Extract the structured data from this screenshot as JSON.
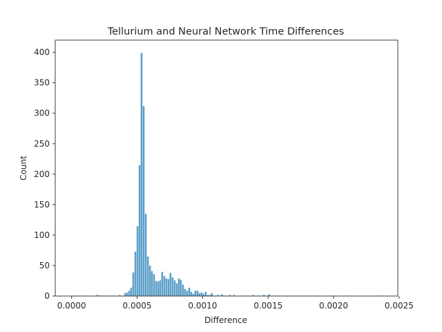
{
  "chart_data": {
    "type": "bar",
    "title": "Tellurium and Neural Network Time Differences",
    "xlabel": "Difference",
    "ylabel": "Count",
    "xlim": [
      -0.000125,
      0.00249
    ],
    "ylim": [
      0,
      420
    ],
    "xticks": [
      0.0,
      0.0005,
      0.001,
      0.0015,
      0.002,
      0.0025
    ],
    "xtick_labels": [
      "0.0000",
      "0.0005",
      "0.0010",
      "0.0015",
      "0.0020",
      "0.0025"
    ],
    "yticks": [
      0,
      50,
      100,
      150,
      200,
      250,
      300,
      350,
      400
    ],
    "ytick_labels": [
      "0",
      "50",
      "100",
      "150",
      "200",
      "250",
      "300",
      "350",
      "400"
    ],
    "grid": false,
    "bar_color": "#5a9ec8",
    "bin_width": 1.58e-05,
    "series": [
      {
        "values": [
          {
            "x": 0.0,
            "y": 1
          },
          {
            "x": 0.0001,
            "y": 1
          },
          {
            "x": 0.00019,
            "y": 2
          },
          {
            "x": 0.00021,
            "y": 1
          },
          {
            "x": 0.00024,
            "y": 1
          },
          {
            "x": 0.00029,
            "y": 1
          },
          {
            "x": 0.00031,
            "y": 1
          },
          {
            "x": 0.00036,
            "y": 2
          },
          {
            "x": 0.0004,
            "y": 5
          },
          {
            "x": 0.000416,
            "y": 6
          },
          {
            "x": 0.000432,
            "y": 9
          },
          {
            "x": 0.000447,
            "y": 14
          },
          {
            "x": 0.000463,
            "y": 39
          },
          {
            "x": 0.000479,
            "y": 73
          },
          {
            "x": 0.000495,
            "y": 115
          },
          {
            "x": 0.000511,
            "y": 215
          },
          {
            "x": 0.000526,
            "y": 399
          },
          {
            "x": 0.000542,
            "y": 312
          },
          {
            "x": 0.000558,
            "y": 135
          },
          {
            "x": 0.000574,
            "y": 65
          },
          {
            "x": 0.00059,
            "y": 50
          },
          {
            "x": 0.000605,
            "y": 41
          },
          {
            "x": 0.000621,
            "y": 36
          },
          {
            "x": 0.000637,
            "y": 25
          },
          {
            "x": 0.000653,
            "y": 24
          },
          {
            "x": 0.000668,
            "y": 26
          },
          {
            "x": 0.000684,
            "y": 40
          },
          {
            "x": 0.0007,
            "y": 33
          },
          {
            "x": 0.000716,
            "y": 29
          },
          {
            "x": 0.000732,
            "y": 28
          },
          {
            "x": 0.000747,
            "y": 38
          },
          {
            "x": 0.000763,
            "y": 31
          },
          {
            "x": 0.000779,
            "y": 26
          },
          {
            "x": 0.000795,
            "y": 21
          },
          {
            "x": 0.000811,
            "y": 29
          },
          {
            "x": 0.000826,
            "y": 27
          },
          {
            "x": 0.000842,
            "y": 19
          },
          {
            "x": 0.000858,
            "y": 12
          },
          {
            "x": 0.000874,
            "y": 9
          },
          {
            "x": 0.00089,
            "y": 14
          },
          {
            "x": 0.000905,
            "y": 7
          },
          {
            "x": 0.000921,
            "y": 4
          },
          {
            "x": 0.000937,
            "y": 9
          },
          {
            "x": 0.000953,
            "y": 9
          },
          {
            "x": 0.000968,
            "y": 5
          },
          {
            "x": 0.000984,
            "y": 6
          },
          {
            "x": 0.001,
            "y": 4
          },
          {
            "x": 0.001016,
            "y": 7
          },
          {
            "x": 0.001032,
            "y": 2
          },
          {
            "x": 0.001047,
            "y": 2
          },
          {
            "x": 0.001063,
            "y": 5
          },
          {
            "x": 0.001079,
            "y": 1
          },
          {
            "x": 0.001095,
            "y": 1
          },
          {
            "x": 0.00111,
            "y": 2
          },
          {
            "x": 0.00114,
            "y": 3
          },
          {
            "x": 0.00117,
            "y": 1
          },
          {
            "x": 0.0012,
            "y": 2
          },
          {
            "x": 0.00123,
            "y": 2
          },
          {
            "x": 0.00128,
            "y": 1
          },
          {
            "x": 0.00131,
            "y": 1
          },
          {
            "x": 0.00134,
            "y": 1
          },
          {
            "x": 0.00138,
            "y": 2
          },
          {
            "x": 0.00142,
            "y": 1
          },
          {
            "x": 0.00146,
            "y": 2
          },
          {
            "x": 0.0015,
            "y": 3
          },
          {
            "x": 0.00154,
            "y": 1
          },
          {
            "x": 0.00158,
            "y": 1
          },
          {
            "x": 0.00163,
            "y": 1
          },
          {
            "x": 0.00168,
            "y": 1
          },
          {
            "x": 0.00172,
            "y": 1
          },
          {
            "x": 0.00181,
            "y": 1
          },
          {
            "x": 0.00188,
            "y": 1
          },
          {
            "x": 0.00196,
            "y": 1
          },
          {
            "x": 0.0021,
            "y": 1
          },
          {
            "x": 0.00232,
            "y": 1
          },
          {
            "x": 0.00237,
            "y": 1
          }
        ]
      }
    ]
  }
}
